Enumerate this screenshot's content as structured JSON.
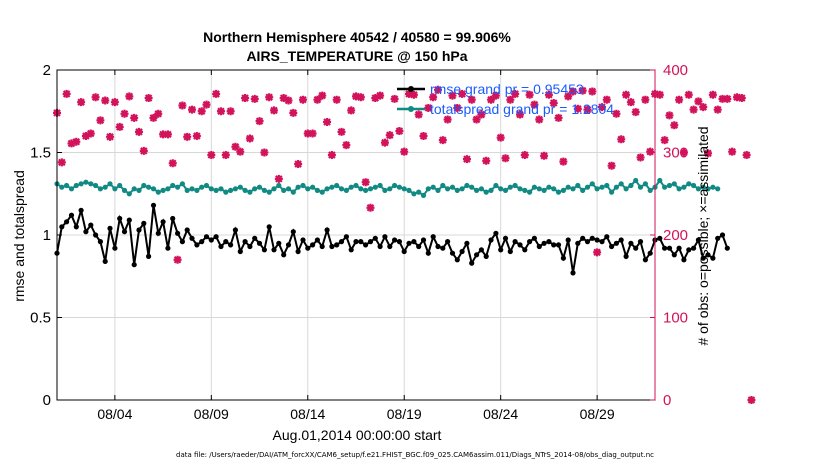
{
  "colors": {
    "rmse": "#000000",
    "spread": "#128a84",
    "obs": "#d2125a",
    "grid": "#d8d8d8",
    "legend_text": "#1a5cff"
  },
  "chart_data": {
    "type": "line",
    "title": [
      "Northern Hemisphere 40542 / 40580 = 99.906%",
      "AIRS_TEMPERATURE @ 150 hPa"
    ],
    "xlabel": "Aug.01,2014 00:00:00 start",
    "ylabel_left": "rmse and totalspread",
    "ylabel_right": "# of obs: o=possible; ×=assimilated",
    "xlim": [
      1,
      32
    ],
    "ylim_left": [
      0,
      2
    ],
    "ylim_right": [
      0,
      400
    ],
    "yticks_left": [
      "0",
      "0.5",
      "1",
      "1.5",
      "2"
    ],
    "yticks_right": [
      "0",
      "100",
      "200",
      "300",
      "400"
    ],
    "xticks": [
      {
        "day": 4.0,
        "label": "08/04"
      },
      {
        "day": 9.0,
        "label": "08/09"
      },
      {
        "day": 14.0,
        "label": "08/14"
      },
      {
        "day": 19.0,
        "label": "08/19"
      },
      {
        "day": 24.0,
        "label": "08/24"
      },
      {
        "day": 29.0,
        "label": "08/29"
      }
    ],
    "x_start_day": 1.0,
    "x_step_day": 0.25,
    "legend": [
      {
        "label": "rmse grand pr = 0.95453",
        "series": "rmse"
      },
      {
        "label": "totalspread grand pr = 1.2804",
        "series": "spread"
      }
    ],
    "series": [
      {
        "name": "rmse",
        "axis": "left",
        "values": [
          0.89,
          1.05,
          1.08,
          1.12,
          1.05,
          1.15,
          1.02,
          1.06,
          1.0,
          0.96,
          0.84,
          1.04,
          0.92,
          1.1,
          1.02,
          1.09,
          0.82,
          1.03,
          1.07,
          0.87,
          1.18,
          1.01,
          1.08,
          0.92,
          1.1,
          1.01,
          0.96,
          1.03,
          0.98,
          0.94,
          0.96,
          0.99,
          0.97,
          0.99,
          0.93,
          0.96,
          0.94,
          1.03,
          0.9,
          0.96,
          0.93,
          0.98,
          0.95,
          0.91,
          1.05,
          0.91,
          0.95,
          0.88,
          0.94,
          1.02,
          0.9,
          0.97,
          0.92,
          0.94,
          0.97,
          0.93,
          1.03,
          0.93,
          0.94,
          0.96,
          0.99,
          0.91,
          0.96,
          0.96,
          0.94,
          0.96,
          0.98,
          0.93,
          0.99,
          0.93,
          0.97,
          0.96,
          0.9,
          0.95,
          0.96,
          0.93,
          0.97,
          0.89,
          0.99,
          0.93,
          0.92,
          0.96,
          0.89,
          0.85,
          0.9,
          0.95,
          0.83,
          0.88,
          0.91,
          0.87,
          0.97,
          1.01,
          0.91,
          0.98,
          0.9,
          0.96,
          0.94,
          0.91,
          0.96,
          0.98,
          0.93,
          0.95,
          0.96,
          0.94,
          0.94,
          0.86,
          0.97,
          0.77,
          0.95,
          0.98,
          0.96,
          0.98,
          0.97,
          0.96,
          0.99,
          0.93,
          0.95,
          0.97,
          0.87,
          0.95,
          0.92,
          0.96,
          0.85,
          0.89,
          0.97,
          0.98,
          0.92,
          0.92,
          0.88,
          0.92,
          0.85,
          0.91,
          0.92,
          0.97,
          0.86,
          0.88,
          0.86,
          0.98,
          1.0,
          0.92
        ],
        "marker": "circle"
      },
      {
        "name": "totalspread",
        "axis": "left",
        "values": [
          1.31,
          1.29,
          1.3,
          1.28,
          1.3,
          1.31,
          1.32,
          1.31,
          1.3,
          1.28,
          1.29,
          1.31,
          1.28,
          1.3,
          1.27,
          1.25,
          1.28,
          1.27,
          1.3,
          1.29,
          1.28,
          1.26,
          1.27,
          1.28,
          1.3,
          1.29,
          1.31,
          1.27,
          1.28,
          1.27,
          1.29,
          1.3,
          1.28,
          1.27,
          1.28,
          1.26,
          1.27,
          1.28,
          1.29,
          1.27,
          1.26,
          1.28,
          1.29,
          1.27,
          1.26,
          1.28,
          1.3,
          1.27,
          1.28,
          1.26,
          1.29,
          1.3,
          1.28,
          1.29,
          1.27,
          1.26,
          1.28,
          1.29,
          1.3,
          1.28,
          1.27,
          1.29,
          1.3,
          1.28,
          1.27,
          1.28,
          1.29,
          1.3,
          1.27,
          1.28,
          1.3,
          1.29,
          1.28,
          1.27,
          1.25,
          1.26,
          1.24,
          1.28,
          1.29,
          1.27,
          1.3,
          1.28,
          1.29,
          1.27,
          1.28,
          1.3,
          1.29,
          1.27,
          1.28,
          1.26,
          1.27,
          1.3,
          1.28,
          1.27,
          1.29,
          1.3,
          1.28,
          1.27,
          1.26,
          1.29,
          1.28,
          1.27,
          1.29,
          1.28,
          1.26,
          1.27,
          1.29,
          1.28,
          1.3,
          1.27,
          1.29,
          1.31,
          1.28,
          1.29,
          1.3,
          1.26,
          1.29,
          1.31,
          1.28,
          1.3,
          1.33,
          1.29,
          1.31,
          1.27,
          1.29,
          1.33,
          1.29,
          1.3,
          1.31,
          1.28,
          1.29,
          1.31,
          1.3,
          1.28,
          1.29,
          1.28,
          1.29,
          1.28
        ],
        "marker": "circle"
      },
      {
        "name": "obs_assimilated",
        "axis": "right",
        "values": [
          348,
          288,
          371,
          311,
          313,
          361,
          320,
          323,
          367,
          339,
          363,
          319,
          361,
          331,
          347,
          368,
          342,
          325,
          302,
          366,
          342,
          347,
          322,
          322,
          287,
          170,
          357,
          319,
          352,
          320,
          350,
          358,
          297,
          371,
          350,
          297,
          350,
          307,
          301,
          366,
          317,
          365,
          338,
          300,
          367,
          351,
          268,
          366,
          363,
          348,
          286,
          364,
          323,
          323,
          364,
          369,
          337,
          297,
          364,
          325,
          309,
          351,
          368,
          367,
          264,
          233,
          366,
          369,
          312,
          321,
          365,
          326,
          301,
          371,
          370,
          346,
          320,
          354,
          367,
          376,
          315,
          340,
          369,
          354,
          371,
          292,
          364,
          340,
          346,
          290,
          364,
          369,
          318,
          293,
          364,
          371,
          346,
          297,
          370,
          358,
          340,
          296,
          370,
          360,
          342,
          289,
          368,
          374,
          353,
          375,
          352,
          374,
          179,
          355,
          364,
          284,
          347,
          316,
          370,
          361,
          349,
          294,
          364,
          301,
          371,
          370,
          315,
          345,
          333,
          364,
          300,
          370,
          352,
          362,
          355,
          299,
          370,
          352,
          365,
          365,
          301,
          367,
          366,
          297,
          0
        ],
        "marker": "x"
      }
    ]
  }
}
